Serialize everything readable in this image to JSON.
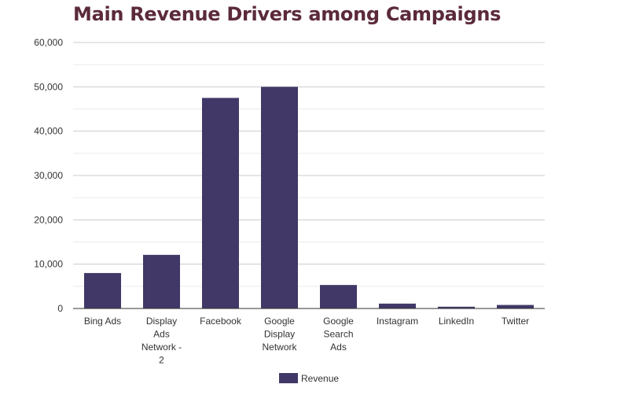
{
  "colors": {
    "title": "#5b2a3a",
    "bar": "#413867",
    "grid_major": "#cccccc",
    "grid_minor": "#ebebeb",
    "axis": "#333333"
  },
  "chart_data": {
    "type": "bar",
    "title": "Main Revenue Drivers among Campaigns",
    "xlabel": "",
    "ylabel": "",
    "categories": [
      "Bing Ads",
      "Display Ads Network - 2",
      "Facebook",
      "Google Display Network",
      "Google Search Ads",
      "Instagram",
      "LinkedIn",
      "Twitter"
    ],
    "category_lines": [
      [
        "Bing Ads"
      ],
      [
        "Display",
        "Ads",
        "Network -",
        "2"
      ],
      [
        "Facebook"
      ],
      [
        "Google",
        "Display",
        "Network"
      ],
      [
        "Google",
        "Search",
        "Ads"
      ],
      [
        "Instagram"
      ],
      [
        "LinkedIn"
      ],
      [
        "Twitter"
      ]
    ],
    "series": [
      {
        "name": "Revenue",
        "values": [
          8000,
          12100,
          47500,
          50000,
          5300,
          1100,
          400,
          800
        ]
      }
    ],
    "ylim": [
      0,
      60000
    ],
    "yticks": [
      0,
      10000,
      20000,
      30000,
      40000,
      50000,
      60000
    ],
    "ytick_labels": [
      "0",
      "10,000",
      "20,000",
      "30,000",
      "40,000",
      "50,000",
      "60,000"
    ],
    "grid": true,
    "legend_position": "bottom"
  }
}
